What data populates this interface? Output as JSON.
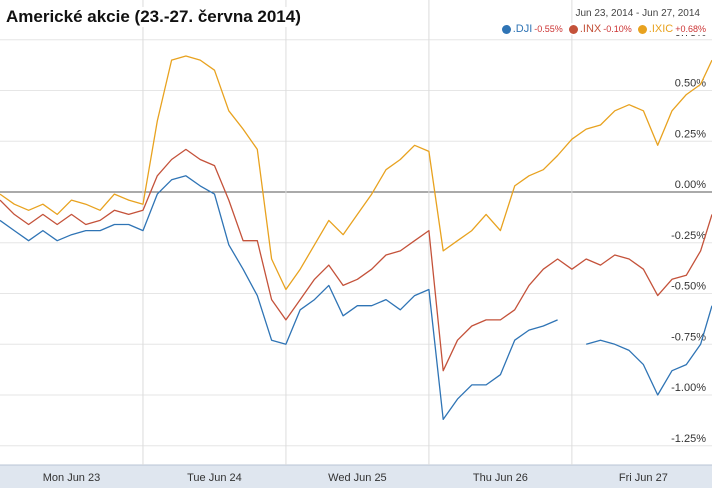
{
  "chart_data": {
    "type": "line",
    "title": "Americké akcie (23.-27. června 2014)",
    "date_range": "Jun 23, 2014 - Jun 27, 2014",
    "x": [
      0,
      0.1,
      0.2,
      0.3,
      0.4,
      0.5,
      0.6,
      0.7,
      0.8,
      0.9,
      1.0,
      1.1,
      1.2,
      1.3,
      1.4,
      1.5,
      1.6,
      1.7,
      1.8,
      1.9,
      2.0,
      2.1,
      2.2,
      2.3,
      2.4,
      2.5,
      2.6,
      2.7,
      2.8,
      2.9,
      3.0,
      3.1,
      3.2,
      3.3,
      3.4,
      3.5,
      3.6,
      3.7,
      3.8,
      3.9,
      4.0,
      4.1,
      4.2,
      4.3,
      4.4,
      4.5,
      4.6,
      4.7,
      4.8,
      4.9,
      4.98
    ],
    "series": [
      {
        "name": ".DJI",
        "change": "-0.55%",
        "color": "#2f74b5",
        "values": [
          -0.14,
          -0.19,
          -0.24,
          -0.19,
          -0.24,
          -0.21,
          -0.19,
          -0.19,
          -0.16,
          -0.16,
          -0.19,
          -0.01,
          0.06,
          0.08,
          0.03,
          -0.01,
          -0.26,
          -0.38,
          -0.51,
          -0.73,
          -0.75,
          -0.58,
          -0.53,
          -0.46,
          -0.61,
          -0.56,
          -0.56,
          -0.53,
          -0.58,
          -0.51,
          -0.48,
          -1.12,
          -1.02,
          -0.95,
          -0.95,
          -0.9,
          -0.73,
          -0.68,
          -0.66,
          -0.63,
          null,
          -0.75,
          -0.73,
          -0.75,
          -0.78,
          -0.85,
          -1.0,
          -0.88,
          -0.85,
          -0.75,
          -0.56
        ]
      },
      {
        "name": ".INX",
        "change": "-0.10%",
        "color": "#c4523a",
        "values": [
          -0.04,
          -0.11,
          -0.16,
          -0.11,
          -0.16,
          -0.11,
          -0.16,
          -0.14,
          -0.09,
          -0.11,
          -0.09,
          0.08,
          0.16,
          0.21,
          0.16,
          0.13,
          -0.04,
          -0.24,
          -0.24,
          -0.53,
          -0.63,
          -0.53,
          -0.43,
          -0.36,
          -0.46,
          -0.43,
          -0.38,
          -0.31,
          -0.29,
          -0.24,
          -0.19,
          -0.88,
          -0.73,
          -0.66,
          -0.63,
          -0.63,
          -0.58,
          -0.46,
          -0.38,
          -0.33,
          -0.38,
          -0.33,
          -0.36,
          -0.31,
          -0.33,
          -0.38,
          -0.51,
          -0.43,
          -0.41,
          -0.29,
          -0.11
        ]
      },
      {
        "name": ".IXIC",
        "change": "+0.68%",
        "color": "#e8a21f",
        "values": [
          -0.01,
          -0.06,
          -0.09,
          -0.06,
          -0.11,
          -0.04,
          -0.06,
          -0.09,
          -0.01,
          -0.04,
          -0.06,
          0.35,
          0.65,
          0.67,
          0.65,
          0.6,
          0.4,
          0.31,
          0.21,
          -0.33,
          -0.48,
          -0.38,
          -0.26,
          -0.14,
          -0.21,
          -0.11,
          -0.01,
          0.11,
          0.16,
          0.23,
          0.2,
          -0.29,
          -0.24,
          -0.19,
          -0.11,
          -0.19,
          0.03,
          0.08,
          0.11,
          0.18,
          0.26,
          0.31,
          0.33,
          0.4,
          0.43,
          0.4,
          0.23,
          0.4,
          0.48,
          0.53,
          0.65
        ]
      }
    ],
    "xlim": [
      0,
      4.98
    ],
    "xticks": [
      {
        "value": 0.5,
        "label": "Mon Jun 23"
      },
      {
        "value": 1.5,
        "label": "Tue Jun 24"
      },
      {
        "value": 2.5,
        "label": "Wed Jun 25"
      },
      {
        "value": 3.5,
        "label": "Thu Jun 26"
      },
      {
        "value": 4.5,
        "label": "Fri Jun 27"
      }
    ],
    "ylim": [
      -1.33,
      0.946
    ],
    "yticks": [
      {
        "value": 0.75,
        "label": "0.75%"
      },
      {
        "value": 0.5,
        "label": "0.50%"
      },
      {
        "value": 0.25,
        "label": "0.25%"
      },
      {
        "value": 0,
        "label": "0.00%"
      },
      {
        "value": -0.25,
        "label": "-0.25%"
      },
      {
        "value": -0.5,
        "label": "-0.50%"
      },
      {
        "value": -0.75,
        "label": "-0.75%"
      },
      {
        "value": -1.0,
        "label": "-1.00%"
      },
      {
        "value": -1.25,
        "label": "-1.25%"
      }
    ],
    "grid": true
  }
}
